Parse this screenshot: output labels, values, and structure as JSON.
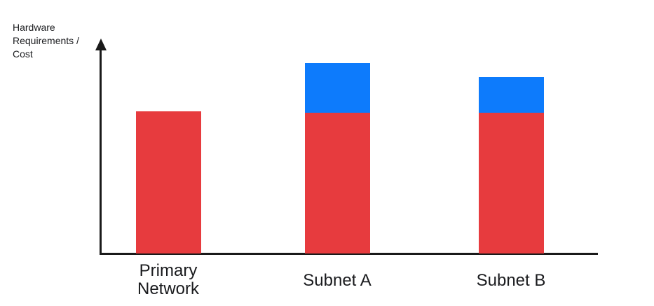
{
  "page": {
    "background": "#ffffff"
  },
  "chart_data": {
    "type": "bar",
    "stacked": true,
    "title": "",
    "xlabel": "",
    "ylabel": "Hardware Requirements / Cost",
    "ylabel_lines": [
      "Hardware",
      "Requirements /",
      "Cost"
    ],
    "categories": [
      "Primary Network",
      "Subnet A",
      "Subnet B"
    ],
    "category_display": [
      "Primary\nNetwork",
      "Subnet A",
      "Subnet B"
    ],
    "series": [
      {
        "name": "base-hardware-cost-red",
        "color": "#e73b3e",
        "values": [
          203,
          201,
          201
        ]
      },
      {
        "name": "additional-hardware-cost-blue",
        "color": "#0d7bfc",
        "values": [
          0,
          71,
          51
        ]
      }
    ],
    "value_units": "relative height (px) — no numeric scale shown on axis",
    "ylim": [
      0,
      307
    ],
    "grid": false,
    "legend": "none",
    "axis_color": "#1a1a1a",
    "text_color": "#1a1b1e"
  }
}
